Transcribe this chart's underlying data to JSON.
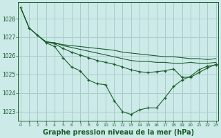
{
  "background_color": "#cceae8",
  "grid_color": "#aacccc",
  "line_color": "#1a5c2a",
  "xlabel": "Graphe pression niveau de la mer (hPa)",
  "xlabel_fontsize": 7,
  "ylim": [
    1022.5,
    1028.9
  ],
  "xlim": [
    -0.3,
    23.3
  ],
  "yticks": [
    1023,
    1024,
    1025,
    1026,
    1027,
    1028
  ],
  "xticks": [
    0,
    1,
    2,
    3,
    4,
    5,
    6,
    7,
    8,
    9,
    10,
    11,
    12,
    13,
    14,
    15,
    16,
    17,
    18,
    19,
    20,
    21,
    22,
    23
  ],
  "series": [
    {
      "x": [
        0,
        1,
        2,
        3,
        4,
        5,
        6,
        7,
        8,
        9,
        10,
        11,
        12,
        13,
        14,
        15,
        16,
        17,
        18,
        19,
        20,
        21,
        22,
        23
      ],
      "y": [
        1028.6,
        1027.5,
        1027.1,
        1026.7,
        1026.5,
        1025.9,
        1025.4,
        1025.2,
        1024.7,
        1024.5,
        1024.45,
        1023.6,
        1023.0,
        1022.85,
        1023.1,
        1023.2,
        1023.2,
        1023.75,
        1024.35,
        1024.7,
        1024.9,
        1025.25,
        1025.45,
        1025.5
      ],
      "has_markers": true
    },
    {
      "x": [
        0,
        1,
        2,
        3,
        4,
        5,
        6,
        7,
        8,
        9,
        10,
        11,
        12,
        13,
        14,
        15,
        16,
        17,
        18,
        19,
        20,
        21,
        22,
        23
      ],
      "y": [
        1028.6,
        1027.5,
        1027.1,
        1026.75,
        1026.7,
        1026.6,
        1026.55,
        1026.5,
        1026.45,
        1026.4,
        1026.35,
        1026.3,
        1026.2,
        1026.15,
        1026.1,
        1026.05,
        1026.0,
        1025.95,
        1025.95,
        1025.9,
        1025.85,
        1025.85,
        1025.8,
        1025.85
      ],
      "has_markers": false
    },
    {
      "x": [
        0,
        1,
        2,
        3,
        4,
        5,
        6,
        7,
        8,
        9,
        10,
        11,
        12,
        13,
        14,
        15,
        16,
        17,
        18,
        19,
        20,
        21,
        22,
        23
      ],
      "y": [
        1028.6,
        1027.5,
        1027.1,
        1026.75,
        1026.7,
        1026.55,
        1026.45,
        1026.35,
        1026.25,
        1026.15,
        1026.05,
        1025.95,
        1025.85,
        1025.75,
        1025.7,
        1025.7,
        1025.65,
        1025.65,
        1025.6,
        1025.6,
        1025.65,
        1025.6,
        1025.6,
        1025.65
      ],
      "has_markers": false
    },
    {
      "x": [
        3,
        4,
        5,
        6,
        7,
        8,
        9,
        10,
        11,
        12,
        13,
        14,
        15,
        16,
        17,
        18,
        19,
        20,
        21,
        22,
        23
      ],
      "y": [
        1026.75,
        1026.65,
        1026.4,
        1026.2,
        1026.05,
        1025.9,
        1025.75,
        1025.65,
        1025.55,
        1025.4,
        1025.25,
        1025.15,
        1025.1,
        1025.15,
        1025.2,
        1025.3,
        1024.85,
        1024.85,
        1025.1,
        1025.35,
        1025.55
      ],
      "has_markers": true
    }
  ]
}
